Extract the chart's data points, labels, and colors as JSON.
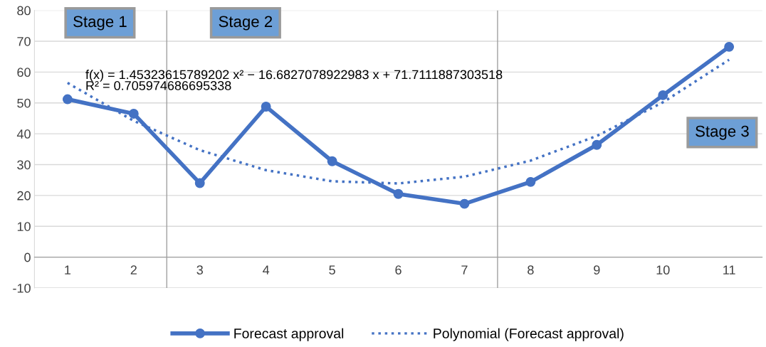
{
  "chart_data": {
    "type": "line",
    "x": [
      1,
      2,
      3,
      4,
      5,
      6,
      7,
      8,
      9,
      10,
      11
    ],
    "xlim": [
      0.5,
      11.5
    ],
    "xticks": [
      1,
      2,
      3,
      4,
      5,
      6,
      7,
      8,
      9,
      10,
      11
    ],
    "ylim": [
      -10,
      80
    ],
    "yticks": [
      -10,
      0,
      10,
      20,
      30,
      40,
      50,
      60,
      70,
      80
    ],
    "grid": "y",
    "legend": "bottom",
    "series": [
      {
        "name": "Forecast approval",
        "color": "#4472c4",
        "marker": "circle",
        "line_style": "solid",
        "values": [
          51.2,
          46.5,
          24,
          48.8,
          31.1,
          20.5,
          17.3,
          24.4,
          36.4,
          52.5,
          68.2
        ]
      },
      {
        "name": "Polynomial (Forecast approval)",
        "color": "#4472c4",
        "marker": "none",
        "line_style": "dotted",
        "values": [
          56.5,
          44.2,
          34.7,
          28.2,
          24.6,
          23.9,
          26.1,
          31.3,
          39.3,
          50.2,
          64.0
        ]
      }
    ],
    "ref_lines": [
      {
        "axis": "x",
        "value": 2.5,
        "color": "#a0a0a0"
      },
      {
        "axis": "x",
        "value": 7.5,
        "color": "#a0a0a0"
      }
    ],
    "annotations": [
      "Stage 1",
      "Stage 2",
      "Stage 3",
      "f(x) = 1.45323615789202 x² − 16.6827078922983 x + 71.7111887303518\nR² = 0.705974686695338"
    ]
  }
}
